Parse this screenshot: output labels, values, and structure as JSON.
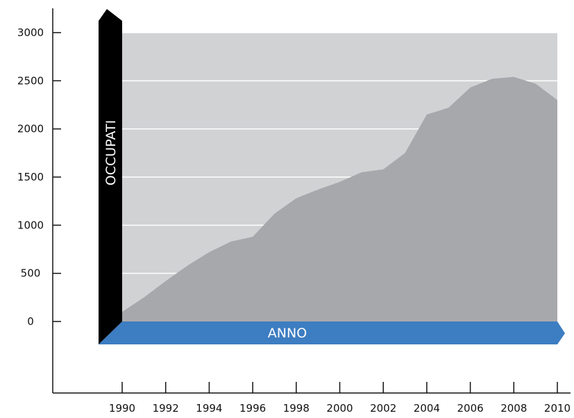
{
  "chart_data": {
    "type": "area",
    "title": "",
    "xlabel": "ANNO",
    "ylabel": "OCCUPATI",
    "x": [
      1990,
      1991,
      1992,
      1993,
      1994,
      1995,
      1996,
      1997,
      1998,
      1999,
      2000,
      2001,
      2002,
      2003,
      2004,
      2005,
      2006,
      2007,
      2008,
      2009,
      2010
    ],
    "series": [
      {
        "values": [
          100,
          250,
          420,
          580,
          720,
          830,
          880,
          1120,
          1280,
          1370,
          1450,
          1550,
          1580,
          1750,
          2150,
          2220,
          2430,
          2520,
          2540,
          2470,
          2300
        ]
      }
    ],
    "xlim": [
      1990,
      2010
    ],
    "ylim": [
      0,
      3000
    ],
    "x_ticks": [
      "1990",
      "1992",
      "1994",
      "1996",
      "1998",
      "2000",
      "2002",
      "2004",
      "2006",
      "2008",
      "2010"
    ],
    "y_ticks": [
      "0",
      "500",
      "1000",
      "1500",
      "2000",
      "2500",
      "3000"
    ],
    "grid": true,
    "legend": "none",
    "colors": {
      "plot_background": "#d1d2d4",
      "area_fill": "#a7a8ac",
      "gridline": "#ffffff",
      "x_band": "#3d7dc2",
      "y_band": "#000000",
      "axis": "#111111"
    }
  }
}
